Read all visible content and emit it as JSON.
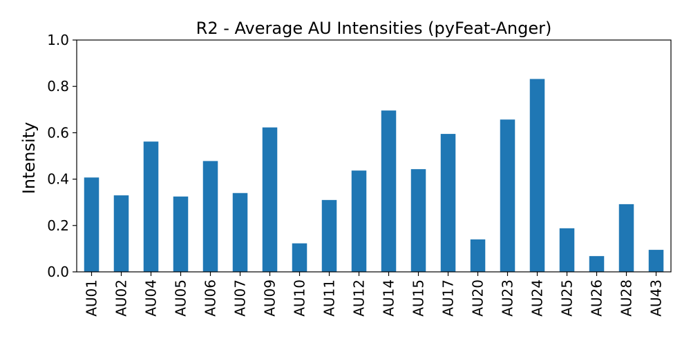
{
  "chart_data": {
    "type": "bar",
    "title": "R2 - Average AU Intensities (pyFeat-Anger)",
    "xlabel": "",
    "ylabel": "Intensity",
    "categories": [
      "AU01",
      "AU02",
      "AU04",
      "AU05",
      "AU06",
      "AU07",
      "AU09",
      "AU10",
      "AU11",
      "AU12",
      "AU14",
      "AU15",
      "AU17",
      "AU20",
      "AU23",
      "AU24",
      "AU25",
      "AU26",
      "AU28",
      "AU43"
    ],
    "values": [
      0.407,
      0.33,
      0.562,
      0.325,
      0.478,
      0.34,
      0.623,
      0.123,
      0.31,
      0.437,
      0.696,
      0.443,
      0.595,
      0.14,
      0.657,
      0.832,
      0.188,
      0.068,
      0.292,
      0.095
    ],
    "ylim": [
      0,
      1.0
    ],
    "yticks": [
      "0.0",
      "0.2",
      "0.4",
      "0.6",
      "0.8",
      "1.0"
    ],
    "grid": false,
    "bar_color": "#1f77b4"
  }
}
